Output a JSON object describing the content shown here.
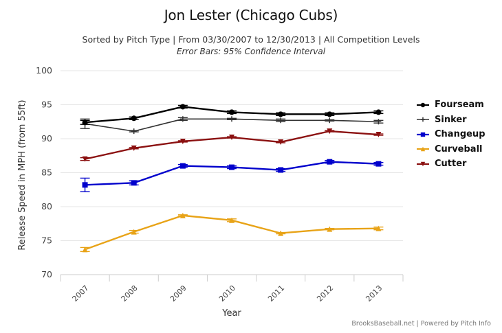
{
  "chart_data": {
    "type": "line",
    "title": "Jon Lester (Chicago Cubs)",
    "subtitle": "Sorted by Pitch Type | From 03/30/2007 to 12/30/2013 | All Competition Levels",
    "note": "Error Bars: 95% Confidence Interval",
    "xlabel": "Year",
    "ylabel": "Release Speed in MPH (from 55ft)",
    "categories": [
      "2007",
      "2008",
      "2009",
      "2010",
      "2011",
      "2012",
      "2013"
    ],
    "ylim": [
      70,
      100
    ],
    "yticks": [
      "70",
      "75",
      "80",
      "85",
      "90",
      "95",
      "100"
    ],
    "grid": true,
    "legend_position": "right",
    "series": [
      {
        "name": "Fourseam",
        "color": "#000000",
        "marker": "circle",
        "values": [
          92.4,
          93.0,
          94.7,
          93.9,
          93.6,
          93.6,
          93.9
        ],
        "errors": [
          0.3,
          0.2,
          0.2,
          0.2,
          0.2,
          0.2,
          0.2
        ]
      },
      {
        "name": "Sinker",
        "color": "#333333",
        "marker": "cross",
        "values": [
          92.2,
          91.1,
          92.9,
          92.9,
          92.7,
          92.7,
          92.5
        ],
        "errors": [
          0.7,
          0.1,
          0.2,
          0.1,
          0.2,
          0.1,
          0.2
        ]
      },
      {
        "name": "Changeup",
        "color": "#0000cc",
        "marker": "square",
        "values": [
          83.2,
          83.5,
          86.0,
          85.8,
          85.4,
          86.6,
          86.3
        ],
        "errors": [
          1.0,
          0.3,
          0.2,
          0.2,
          0.2,
          0.2,
          0.2
        ]
      },
      {
        "name": "Curveball",
        "color": "#e8a317",
        "marker": "triangle",
        "values": [
          73.7,
          76.3,
          78.7,
          78.0,
          76.1,
          76.7,
          76.8
        ],
        "errors": [
          0.3,
          0.2,
          0.1,
          0.2,
          0.1,
          0.1,
          0.2
        ]
      },
      {
        "name": "Cutter",
        "color": "#8b1010",
        "marker": "triangle-down",
        "values": [
          87.0,
          88.6,
          89.6,
          90.2,
          89.5,
          91.1,
          90.6
        ],
        "errors": [
          0.2,
          0.1,
          0.1,
          0.1,
          0.1,
          0.1,
          0.1
        ]
      }
    ]
  },
  "footer": "BrooksBaseball.net | Powered by Pitch Info"
}
